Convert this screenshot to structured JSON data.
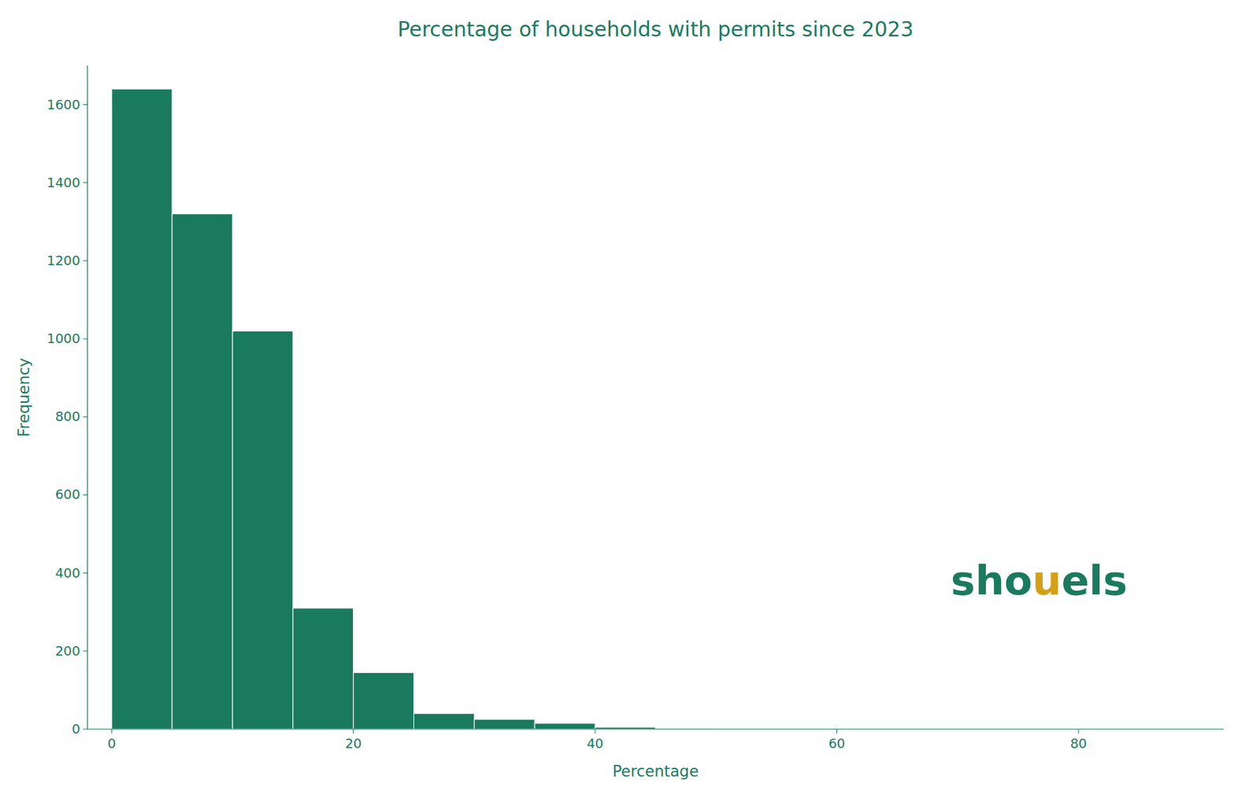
{
  "chart_data": {
    "type": "histogram",
    "title": "Percentage of households with permits since 2023",
    "xlabel": "Percentage",
    "ylabel": "Frequency",
    "bins": [
      0,
      5,
      10,
      15,
      20,
      25,
      30,
      35,
      40,
      45,
      50,
      55,
      60,
      65,
      70,
      75,
      80,
      85,
      90
    ],
    "values": [
      1640,
      1320,
      1020,
      310,
      145,
      40,
      25,
      15,
      5,
      2,
      1,
      0,
      0,
      1,
      0,
      0,
      0,
      1
    ],
    "color": "#1a7a5e",
    "xlim": [
      -2,
      92
    ],
    "ylim": [
      0,
      1700
    ],
    "xticks": [
      0,
      20,
      40,
      60,
      80
    ],
    "yticks": [
      0,
      200,
      400,
      600,
      800,
      1000,
      1200,
      1400,
      1600
    ],
    "grid": false,
    "annotations": [
      {
        "text": "sho",
        "color": "#1a7a5e"
      },
      {
        "text": "u",
        "color": "#d4a017"
      },
      {
        "text": "els",
        "color": "#1a7a5e"
      }
    ]
  }
}
